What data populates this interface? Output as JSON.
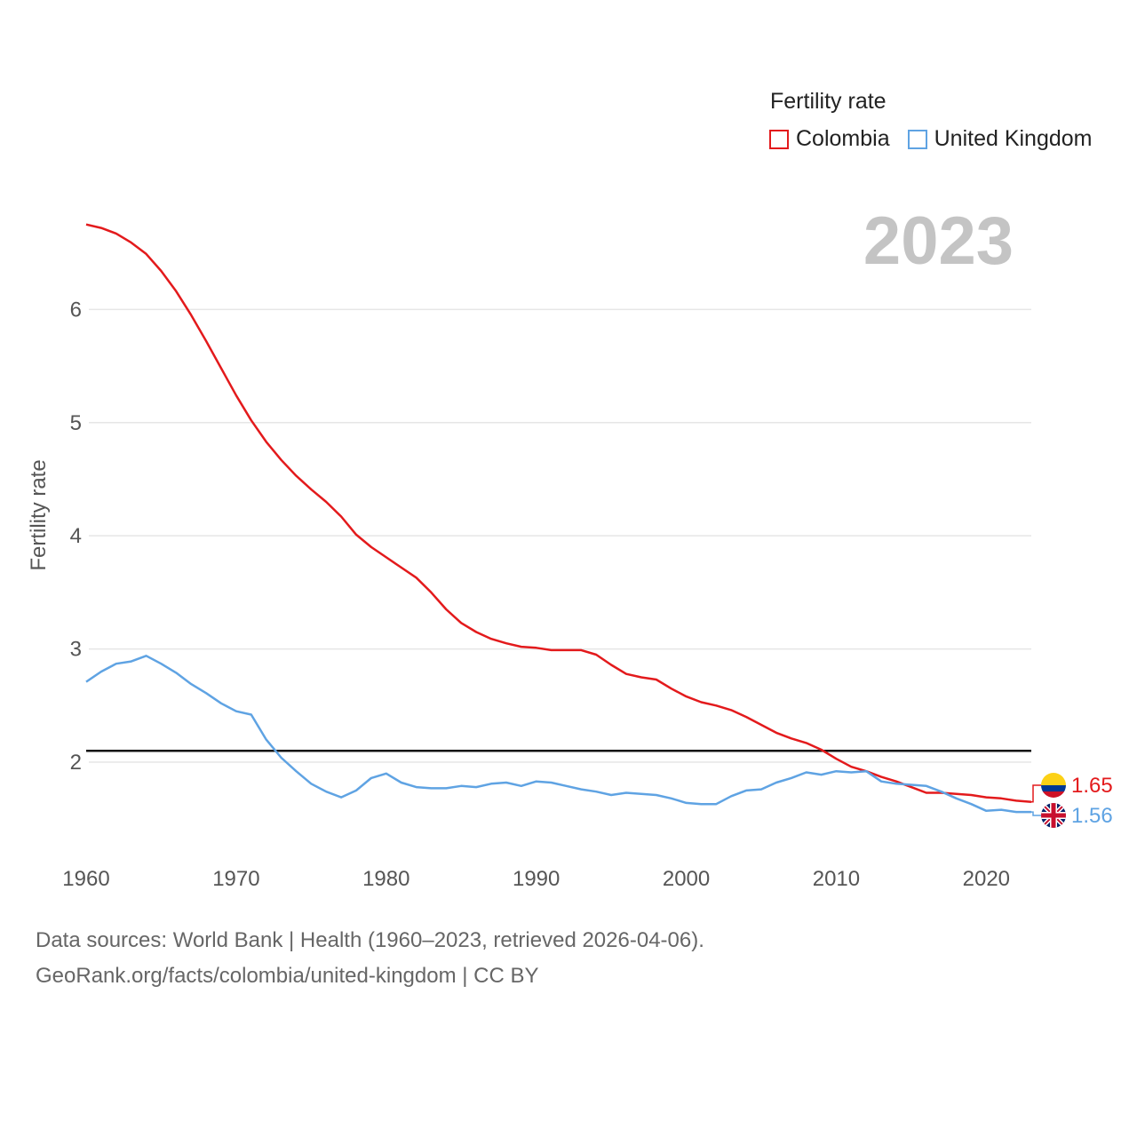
{
  "legend": {
    "title": "Fertility rate",
    "items": [
      {
        "label": "Colombia",
        "color": "#e31a1c"
      },
      {
        "label": "United Kingdom",
        "color": "#5fa3e3"
      }
    ]
  },
  "year_label": "2023",
  "footer": {
    "line1": "Data sources: World Bank | Health (1960–2023, retrieved 2026-04-06).",
    "line2": "GeoRank.org/facts/colombia/united-kingdom | CC BY"
  },
  "chart_data": {
    "type": "line",
    "title": "Fertility rate",
    "xlabel": "",
    "ylabel": "Fertility rate",
    "xlim": [
      1960,
      2023
    ],
    "ylim": [
      1.2,
      6.85
    ],
    "x_ticks": [
      1960,
      1970,
      1980,
      1990,
      2000,
      2010,
      2020
    ],
    "y_ticks": [
      2,
      3,
      4,
      5,
      6
    ],
    "grid": true,
    "reference_line": 2.1,
    "end_labels": [
      {
        "series": "Colombia",
        "text": "1.65",
        "color": "#e31a1c"
      },
      {
        "series": "United Kingdom",
        "text": "1.56",
        "color": "#5fa3e3"
      }
    ],
    "x": [
      1960,
      1961,
      1962,
      1963,
      1964,
      1965,
      1966,
      1967,
      1968,
      1969,
      1970,
      1971,
      1972,
      1973,
      1974,
      1975,
      1976,
      1977,
      1978,
      1979,
      1980,
      1981,
      1982,
      1983,
      1984,
      1985,
      1986,
      1987,
      1988,
      1989,
      1990,
      1991,
      1992,
      1993,
      1994,
      1995,
      1996,
      1997,
      1998,
      1999,
      2000,
      2001,
      2002,
      2003,
      2004,
      2005,
      2006,
      2007,
      2008,
      2009,
      2010,
      2011,
      2012,
      2013,
      2014,
      2015,
      2016,
      2017,
      2018,
      2019,
      2020,
      2021,
      2022,
      2023
    ],
    "series": [
      {
        "name": "Colombia",
        "color": "#e31a1c",
        "values": [
          6.75,
          6.72,
          6.67,
          6.59,
          6.49,
          6.34,
          6.16,
          5.95,
          5.72,
          5.48,
          5.24,
          5.02,
          4.83,
          4.67,
          4.53,
          4.41,
          4.3,
          4.17,
          4.01,
          3.9,
          3.81,
          3.72,
          3.63,
          3.5,
          3.35,
          3.23,
          3.15,
          3.09,
          3.05,
          3.02,
          3.01,
          2.99,
          2.99,
          2.99,
          2.95,
          2.86,
          2.78,
          2.75,
          2.73,
          2.65,
          2.58,
          2.53,
          2.5,
          2.46,
          2.4,
          2.33,
          2.26,
          2.21,
          2.17,
          2.11,
          2.03,
          1.96,
          1.92,
          1.87,
          1.83,
          1.78,
          1.73,
          1.73,
          1.72,
          1.71,
          1.69,
          1.68,
          1.66,
          1.65
        ]
      },
      {
        "name": "United Kingdom",
        "color": "#5fa3e3",
        "values": [
          2.71,
          2.8,
          2.87,
          2.89,
          2.94,
          2.87,
          2.79,
          2.69,
          2.61,
          2.52,
          2.45,
          2.42,
          2.2,
          2.04,
          1.92,
          1.81,
          1.74,
          1.69,
          1.75,
          1.86,
          1.9,
          1.82,
          1.78,
          1.77,
          1.77,
          1.79,
          1.78,
          1.81,
          1.82,
          1.79,
          1.83,
          1.82,
          1.79,
          1.76,
          1.74,
          1.71,
          1.73,
          1.72,
          1.71,
          1.68,
          1.64,
          1.63,
          1.63,
          1.7,
          1.75,
          1.76,
          1.82,
          1.86,
          1.91,
          1.89,
          1.92,
          1.91,
          1.92,
          1.83,
          1.81,
          1.8,
          1.79,
          1.74,
          1.68,
          1.63,
          1.57,
          1.58,
          1.56,
          1.56
        ]
      }
    ]
  }
}
